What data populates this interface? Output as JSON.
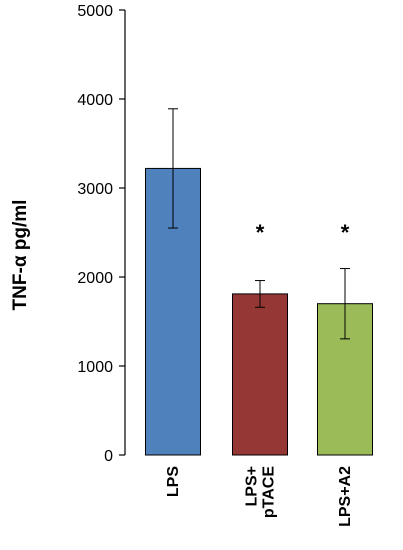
{
  "chart_data": {
    "type": "bar",
    "title": "",
    "xlabel": "",
    "ylabel": "TNF-α pg/ml",
    "ylim": [
      0,
      5000
    ],
    "yticks": [
      0,
      1000,
      2000,
      3000,
      4000,
      5000
    ],
    "grid": false,
    "legend": "none",
    "categories": [
      {
        "lines": [
          "LPS"
        ]
      },
      {
        "lines": [
          "LPS+",
          "pTACE"
        ]
      },
      {
        "lines": [
          "LPS+A2"
        ]
      }
    ],
    "values": [
      3220,
      1810,
      1700
    ],
    "errors": [
      670,
      150,
      395
    ],
    "significance": [
      "",
      "*",
      "*"
    ],
    "colors": [
      "#4F81BD",
      "#953735",
      "#9BBB59"
    ],
    "axis_color": "#000000"
  }
}
